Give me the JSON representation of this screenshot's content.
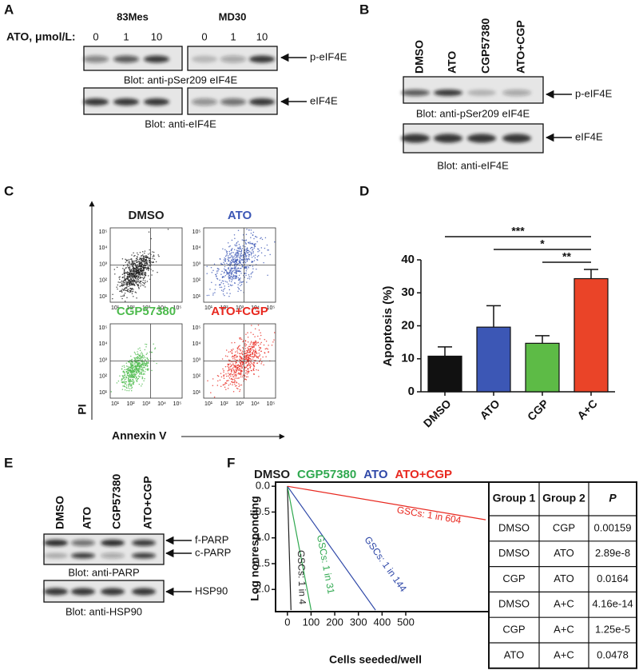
{
  "panels": {
    "A": {
      "label": "A",
      "cell_lines": [
        "83Mes",
        "MD30"
      ],
      "dose_label": "ATO, μmol/L:",
      "doses": [
        "0",
        "1",
        "10"
      ],
      "blots": [
        {
          "band": "p-eIF4E",
          "caption": "Blot: anti-pSer209 eIF4E"
        },
        {
          "band": "eIF4E",
          "caption": "Blot: anti-eIF4E"
        }
      ]
    },
    "B": {
      "label": "B",
      "lanes": [
        "DMSO",
        "ATO",
        "CGP57380",
        "ATO+CGP"
      ],
      "blots": [
        {
          "band": "p-eIF4E",
          "caption": "Blot: anti-pSer209 eIF4E"
        },
        {
          "band": "eIF4E",
          "caption": "Blot: anti-eIF4E"
        }
      ]
    },
    "C": {
      "label": "C",
      "plots": [
        {
          "title": "DMSO",
          "color": "#1e1e1e"
        },
        {
          "title": "ATO",
          "color": "#3c57b5"
        },
        {
          "title": "CGP57380",
          "color": "#4cba4c"
        },
        {
          "title": "ATO+CGP",
          "color": "#e8281f"
        }
      ],
      "ticks": [
        "10¹",
        "10²",
        "10³",
        "10⁴",
        "10⁵"
      ],
      "ylabel": "PI",
      "xlabel": "Annexin V"
    },
    "D": {
      "label": "D"
    },
    "E": {
      "label": "E",
      "lanes": [
        "DMSO",
        "ATO",
        "CGP57380",
        "ATO+CGP"
      ],
      "bands": [
        "f-PARP",
        "c-PARP"
      ],
      "caption": "Blot: anti-PARP",
      "control_band": "HSP90",
      "control_caption": "Blot: anti-HSP90"
    },
    "F": {
      "label": "F"
    }
  },
  "chart_data": [
    {
      "type": "bar",
      "categories": [
        "DMSO",
        "ATO",
        "CGP",
        "A+C"
      ],
      "values": [
        10.8,
        19.6,
        14.7,
        34.3
      ],
      "errors": [
        2.8,
        6.5,
        2.3,
        2.8
      ],
      "colors": [
        "#111111",
        "#3c57b5",
        "#5dbb46",
        "#ea4428"
      ],
      "ylabel": "Apoptosis (%)",
      "ylim": [
        0,
        40
      ],
      "yticks": [
        0,
        10,
        20,
        30,
        40
      ],
      "annotations": [
        {
          "text": "***",
          "between": [
            "DMSO",
            "A+C"
          ]
        },
        {
          "text": "*",
          "between": [
            "ATO",
            "A+C"
          ]
        },
        {
          "text": "**",
          "between": [
            "CGP",
            "A+C"
          ]
        }
      ]
    },
    {
      "type": "line",
      "xlabel": "Cells seeded/well",
      "ylabel": "Log nonresponding",
      "xlim": [
        -50,
        851
      ],
      "ylim": [
        -2.43,
        0.08
      ],
      "xticks": [
        0,
        100,
        200,
        300,
        400,
        500
      ],
      "yticks": [
        {
          "value": 0,
          "label": "0.0"
        },
        -0.5,
        {
          "value": -1,
          "label": "-1.0"
        },
        -1.5,
        {
          "value": -2,
          "label": "-2.0"
        }
      ],
      "series": [
        {
          "name": "DMSO",
          "color": "#1e1e1e",
          "x": [
            0,
            15
          ],
          "values": [
            0,
            -2.4
          ],
          "label": "GSCs: 1 in 4"
        },
        {
          "name": "CGP57380",
          "color": "#2fa84f",
          "x": [
            0,
            100
          ],
          "values": [
            0,
            -2.4
          ],
          "label": "GSCs: 1 in 31"
        },
        {
          "name": "ATO",
          "color": "#2f48a8",
          "x": [
            0,
            372
          ],
          "values": [
            0,
            -2.4
          ],
          "label": "GSCs: 1 in 144"
        },
        {
          "name": "ATO+CGP",
          "color": "#e8281f",
          "x": [
            0,
            838
          ],
          "values": [
            0,
            -0.65
          ],
          "label": "GSCs: 1 in 604"
        }
      ]
    }
  ],
  "table": {
    "header": [
      "Group 1",
      "Group 2",
      "P"
    ],
    "rows": [
      [
        "DMSO",
        "CGP",
        "0.00159"
      ],
      [
        "DMSO",
        "ATO",
        "2.89e-8"
      ],
      [
        "CGP",
        "ATO",
        "0.0164"
      ],
      [
        "DMSO",
        "A+C",
        "4.16e-14"
      ],
      [
        "CGP",
        "A+C",
        "1.25e-5"
      ],
      [
        "ATO",
        "A+C",
        "0.0478"
      ]
    ]
  }
}
